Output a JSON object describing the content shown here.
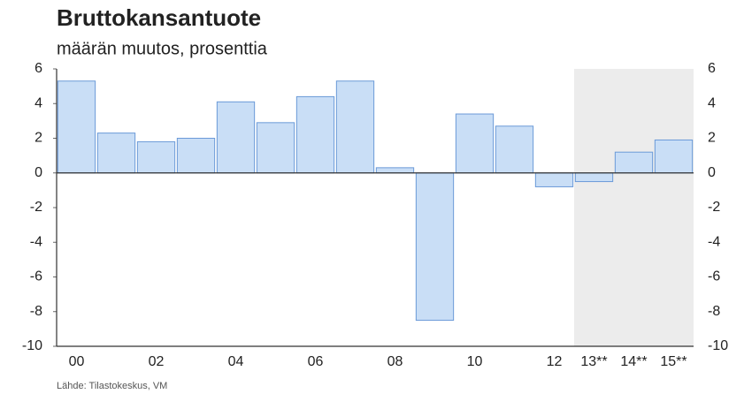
{
  "chart_data": {
    "type": "bar",
    "title": "Bruttokansantuote",
    "subtitle": "määrän muutos, prosenttia",
    "source": "Lähde: Tilastokeskus, VM",
    "categories": [
      "00",
      null,
      "02",
      null,
      "04",
      null,
      "06",
      null,
      "08",
      null,
      "10",
      null,
      "12",
      "13**",
      "14**",
      "15**"
    ],
    "values": [
      5.3,
      2.3,
      1.8,
      2.0,
      4.1,
      2.9,
      4.4,
      5.3,
      0.3,
      -8.5,
      3.4,
      2.7,
      -0.8,
      -0.5,
      1.2,
      1.9
    ],
    "color": "#c9def6",
    "ylim": [
      -10,
      6
    ],
    "yticks": [
      -10,
      -8,
      -6,
      -4,
      -2,
      0,
      2,
      4,
      6
    ],
    "y2lim": [
      -10,
      6
    ],
    "y2ticks": [
      -10,
      -8,
      -6,
      -4,
      -2,
      0,
      2,
      4,
      6
    ]
  }
}
